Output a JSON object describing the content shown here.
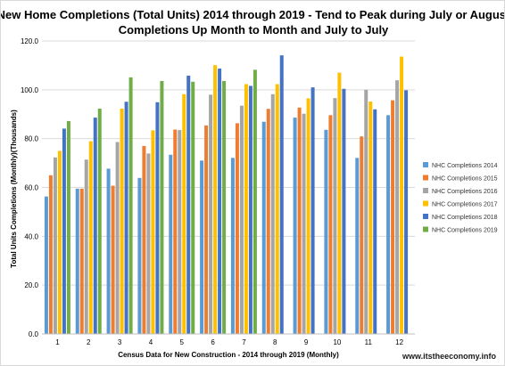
{
  "chart_data": {
    "type": "bar",
    "title_line1": "New Home Completions (Total Units) 2014 through 2019 - Tend to Peak during July or August",
    "title_line2": "Completions Up Month to Month and July to July",
    "xlabel": "Census Data for New Construction - 2014 through 2019 (Monthly)",
    "ylabel": "Total Units Completions (Monthly)(Thousands)",
    "ylim": [
      0,
      120
    ],
    "yticks": [
      "0.0",
      "20.0",
      "40.0",
      "60.0",
      "80.0",
      "100.0",
      "120.0"
    ],
    "grid": true,
    "legend_position": "right",
    "categories": [
      "1",
      "2",
      "3",
      "4",
      "5",
      "6",
      "7",
      "8",
      "9",
      "10",
      "11",
      "12"
    ],
    "series": [
      {
        "name": "NHC Completions 2014",
        "color": "#5b9bd5",
        "values": [
          56.3,
          59.5,
          67.7,
          63.9,
          73.4,
          71.0,
          72.1,
          86.9,
          88.6,
          83.6,
          72.1,
          89.6
        ]
      },
      {
        "name": "NHC Completions 2015",
        "color": "#ed7d31",
        "values": [
          65.0,
          59.5,
          60.7,
          77.0,
          83.7,
          85.4,
          86.3,
          92.2,
          92.7,
          89.6,
          80.9,
          95.7
        ]
      },
      {
        "name": "NHC Completions 2016",
        "color": "#a5a5a5",
        "values": [
          72.3,
          71.4,
          78.6,
          73.9,
          83.5,
          98.0,
          93.5,
          98.2,
          90.2,
          96.6,
          100.0,
          103.9
        ]
      },
      {
        "name": "NHC Completions 2017",
        "color": "#ffc000",
        "values": [
          75.0,
          78.9,
          92.3,
          83.4,
          98.2,
          110.1,
          102.3,
          102.3,
          96.5,
          107.0,
          95.2,
          113.6
        ]
      },
      {
        "name": "NHC Completions 2018",
        "color": "#4472c4",
        "values": [
          84.1,
          88.6,
          95.1,
          94.9,
          105.8,
          108.7,
          101.6,
          114.1,
          101.0,
          100.4,
          92.0,
          99.8
        ]
      },
      {
        "name": "NHC Completions 2019",
        "color": "#70ad47",
        "values": [
          87.2,
          92.3,
          105.1,
          103.6,
          103.3,
          103.6,
          108.2,
          null,
          null,
          null,
          null,
          null
        ]
      }
    ],
    "watermark": "www.itstheeconomy.info"
  }
}
